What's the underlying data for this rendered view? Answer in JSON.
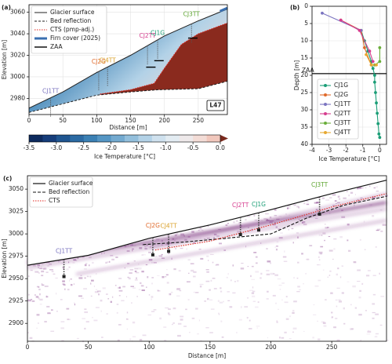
{
  "chart_data": [
    {
      "type": "cross-section",
      "panel_label": "(a)",
      "xlabel": "Distance [m]",
      "ylabel": "Elevation [m]",
      "xlim": [
        0,
        293
      ],
      "ylim": [
        2965,
        3067
      ],
      "xticks": [
        0,
        50,
        100,
        150,
        200,
        250
      ],
      "yticks": [
        2980,
        3000,
        3020,
        3040,
        3060
      ],
      "grid": true,
      "surface": {
        "name": "Glacier surface",
        "color": "#222222",
        "x": [
          0,
          50,
          100,
          150,
          200,
          250,
          293
        ],
        "y": [
          2971,
          2986,
          3004,
          3020,
          3038,
          3052,
          3063
        ]
      },
      "bed": {
        "name": "Bed reflection",
        "color": "#222222",
        "x": [
          0,
          50,
          100,
          150,
          190,
          250,
          293
        ],
        "y": [
          2967,
          2975,
          2983,
          2986,
          2988,
          2989,
          2996
        ]
      },
      "cts": {
        "name": "CTS (pmp-adj.)",
        "color": "#e0261d",
        "x": [
          105,
          150,
          185,
          200,
          225,
          250,
          293
        ],
        "y": [
          2984,
          2988,
          2994,
          3008,
          3030,
          3040,
          3050
        ]
      },
      "firn_cover": {
        "name": "Firn cover (2025)",
        "color": "#3a6fb0",
        "x": [
          282,
          293
        ],
        "y": [
          3061,
          3064
        ]
      },
      "zaa": {
        "name": "ZAA",
        "x": [
          180,
          192,
          242
        ],
        "y": [
          3009,
          3015,
          3036
        ]
      },
      "boreholes": [
        {
          "label": "CJ1TT",
          "x": 32,
          "color": "#7b74c0"
        },
        {
          "label": "CJ2G",
          "x": 103,
          "color": "#e0692a"
        },
        {
          "label": "CJ4TT",
          "x": 116,
          "color": "#d9a12a"
        },
        {
          "label": "CJ2TT",
          "x": 175,
          "color": "#d63c8e"
        },
        {
          "label": "CJ1G",
          "x": 190,
          "color": "#1b9e77"
        },
        {
          "label": "CJ3TT",
          "x": 240,
          "color": "#5fa632"
        }
      ],
      "profile_label": "L47"
    },
    {
      "type": "colorbar",
      "label": "Ice Temperature [°C]",
      "lim": [
        -3.5,
        0
      ],
      "ticks": [
        -3.5,
        {
          "value": -3,
          "label": "-3.0"
        },
        -2.5,
        {
          "value": -2,
          "label": "-2.0"
        },
        -1.5,
        {
          "value": -1,
          "label": "-1.0"
        },
        -0.5,
        {
          "value": 0,
          "label": "0.0"
        }
      ],
      "colors": [
        "#0d2a5e",
        "#163d7a",
        "#1f5590",
        "#2b6aa3",
        "#3b80b4",
        "#5596c4",
        "#73aad0",
        "#93bfdc",
        "#b3d2e7",
        "#cfe1ee",
        "#e3ecf2",
        "#eee9ea",
        "#f3dcd6",
        "#f1c7bc"
      ],
      "extend_color": "#7a2a1e"
    },
    {
      "type": "line",
      "panel_label": "(b)",
      "xlabel": "Ice Temperature [°C]",
      "ylabel": "Depth [m]",
      "xlim": [
        -4,
        0.4
      ],
      "ylim": [
        0,
        40
      ],
      "invert_y": true,
      "xticks": [
        -4,
        -3,
        -2,
        -1,
        0
      ],
      "yticks": [
        0,
        5,
        10,
        15,
        20,
        25,
        30,
        35,
        40
      ],
      "grid": true,
      "zaa": {
        "label": "ZAA",
        "value": 19.5
      },
      "series": [
        {
          "name": "CJ1G",
          "color": "#1b9e77",
          "x": [
            -1.1,
            -0.9,
            -0.7,
            -0.5,
            -0.4,
            -0.3,
            -0.3,
            -0.25,
            -0.2,
            -0.15,
            -0.1,
            -0.05,
            0
          ],
          "y": [
            7,
            10,
            13,
            16,
            18,
            20,
            22,
            25,
            28,
            31,
            34,
            37,
            38
          ]
        },
        {
          "name": "CJ2G",
          "color": "#e0692a",
          "x": [
            -2.3,
            -1.1,
            -0.9,
            -0.5
          ],
          "y": [
            4,
            7,
            12,
            17
          ]
        },
        {
          "name": "CJ1TT",
          "color": "#7b74c0",
          "x": [
            -3.4,
            -1.1
          ],
          "y": [
            2,
            7
          ]
        },
        {
          "name": "CJ2TT",
          "color": "#d63c8e",
          "x": [
            -2.3,
            -1.2,
            -0.6,
            -0.4
          ],
          "y": [
            4,
            7,
            13,
            16
          ]
        },
        {
          "name": "CJ3TT",
          "color": "#6aae3a",
          "x": [
            0,
            0,
            -0.3
          ],
          "y": [
            12,
            16,
            17
          ]
        },
        {
          "name": "CJ4TT",
          "color": "#e6a830",
          "x": [
            -0.8,
            -0.5,
            -0.2
          ],
          "y": [
            14,
            17,
            17
          ]
        }
      ]
    },
    {
      "type": "radargram",
      "panel_label": "(c)",
      "xlabel": "Distance [m]",
      "ylabel": "Elevation [m]",
      "xlim": [
        0,
        295
      ],
      "ylim": [
        2880,
        3065
      ],
      "xticks": [
        0,
        50,
        100,
        150,
        200,
        250
      ],
      "yticks": [
        2900,
        2925,
        2950,
        2975,
        3000,
        3025,
        3050
      ],
      "surface": {
        "name": "Glacier surface",
        "color": "#111111",
        "x": [
          0,
          50,
          100,
          150,
          200,
          250,
          295
        ],
        "y": [
          2965,
          2976,
          2995,
          3010,
          3027,
          3045,
          3060
        ]
      },
      "bed": {
        "name": "Bed reflection",
        "color": "#111111",
        "x": [
          95,
          130,
          170,
          200,
          230,
          260,
          295
        ],
        "y": [
          2988,
          2991,
          2996,
          3000,
          3018,
          3032,
          3042
        ]
      },
      "cts": {
        "name": "CTS",
        "color": "#e0261d",
        "x": [
          105,
          150,
          200,
          250,
          295
        ],
        "y": [
          2982,
          2992,
          3010,
          3030,
          3045
        ]
      },
      "boreholes": [
        {
          "label": "CJ1TT",
          "x": 30,
          "color": "#7b74c0"
        },
        {
          "label": "CJ2G",
          "x": 103,
          "color": "#e0692a"
        },
        {
          "label": "CJ4TT",
          "x": 116,
          "color": "#d9a12a"
        },
        {
          "label": "CJ2TT",
          "x": 175,
          "color": "#d63c8e"
        },
        {
          "label": "CJ1G",
          "x": 190,
          "color": "#1b9e77"
        },
        {
          "label": "CJ3TT",
          "x": 240,
          "color": "#5fa632"
        }
      ]
    }
  ]
}
